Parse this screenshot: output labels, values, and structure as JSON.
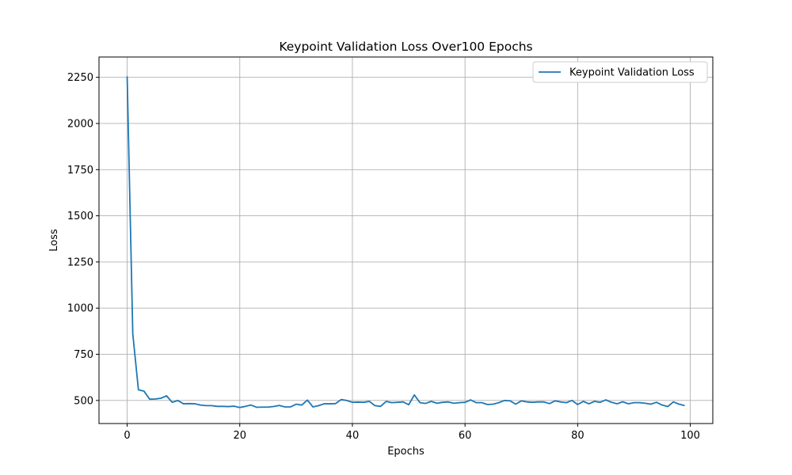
{
  "chart_data": {
    "type": "line",
    "title": "Keypoint Validation Loss Over100 Epochs",
    "xlabel": "Epochs",
    "ylabel": "Loss",
    "xlim": [
      -5,
      104
    ],
    "ylim": [
      375,
      2360
    ],
    "xticks": [
      0,
      20,
      40,
      60,
      80,
      100
    ],
    "yticks": [
      500,
      750,
      1000,
      1250,
      1500,
      1750,
      2000,
      2250
    ],
    "grid": true,
    "legend_position": "top-right",
    "line_color": "#1f77b4",
    "series": [
      {
        "name": "Keypoint Validation Loss",
        "x": [
          0,
          1,
          2,
          3,
          4,
          5,
          6,
          7,
          8,
          9,
          10,
          11,
          12,
          13,
          14,
          15,
          16,
          17,
          18,
          19,
          20,
          21,
          22,
          23,
          24,
          25,
          26,
          27,
          28,
          29,
          30,
          31,
          32,
          33,
          34,
          35,
          36,
          37,
          38,
          39,
          40,
          41,
          42,
          43,
          44,
          45,
          46,
          47,
          48,
          49,
          50,
          51,
          52,
          53,
          54,
          55,
          56,
          57,
          58,
          59,
          60,
          61,
          62,
          63,
          64,
          65,
          66,
          67,
          68,
          69,
          70,
          71,
          72,
          73,
          74,
          75,
          76,
          77,
          78,
          79,
          80,
          81,
          82,
          83,
          84,
          85,
          86,
          87,
          88,
          89,
          90,
          91,
          92,
          93,
          94,
          95,
          96,
          97,
          98,
          99
        ],
        "values": [
          2255,
          860,
          558,
          550,
          507,
          508,
          512,
          525,
          490,
          500,
          482,
          483,
          482,
          475,
          472,
          472,
          468,
          468,
          467,
          469,
          462,
          468,
          475,
          463,
          464,
          464,
          467,
          473,
          465,
          465,
          480,
          475,
          502,
          465,
          472,
          482,
          482,
          483,
          505,
          500,
          490,
          491,
          490,
          495,
          472,
          468,
          495,
          488,
          490,
          492,
          477,
          530,
          488,
          484,
          495,
          485,
          490,
          492,
          485,
          488,
          490,
          503,
          488,
          488,
          478,
          480,
          488,
          500,
          498,
          480,
          498,
          492,
          490,
          492,
          492,
          483,
          498,
          492,
          488,
          500,
          478,
          495,
          482,
          495,
          490,
          503,
          490,
          482,
          493,
          482,
          488,
          488,
          485,
          480,
          490,
          475,
          467,
          492,
          480,
          472
        ]
      }
    ]
  }
}
